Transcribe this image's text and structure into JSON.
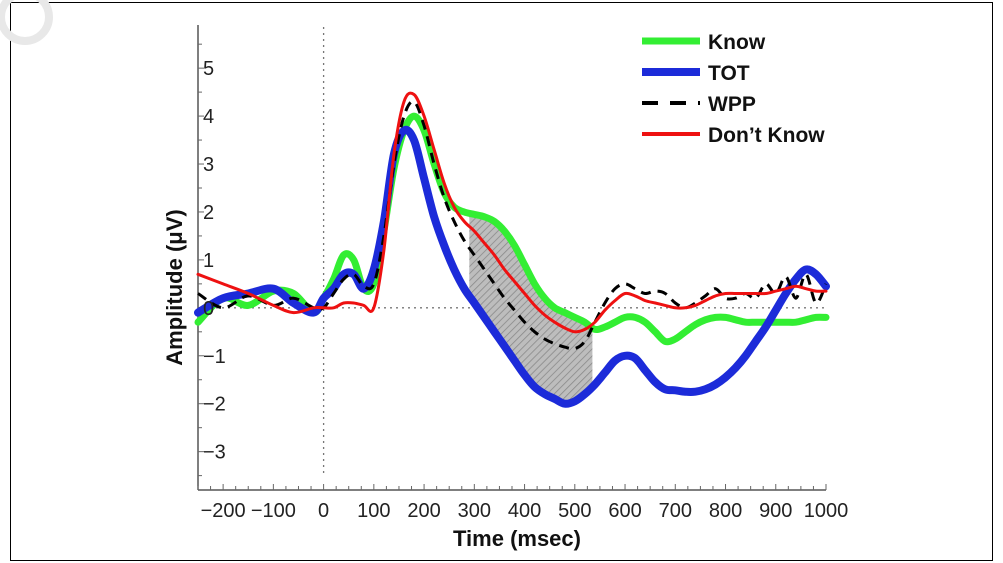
{
  "chart_data": {
    "type": "line",
    "xlabel": "Time (msec)",
    "ylabel": "Amplitude (μV)",
    "xlim": [
      -250,
      1000
    ],
    "ylim": [
      -3.8,
      5.9
    ],
    "xticks": [
      -200,
      -100,
      0,
      100,
      200,
      300,
      400,
      500,
      600,
      700,
      800,
      900,
      1000
    ],
    "xtick_labels": [
      "−200",
      "−100",
      "0",
      "100",
      "200",
      "300",
      "400",
      "500",
      "600",
      "700",
      "800",
      "900",
      "1000"
    ],
    "yticks": [
      5,
      4,
      3,
      2,
      1,
      0,
      -1,
      -2,
      -3
    ],
    "ytick_labels": [
      "5",
      "4",
      "3",
      "2",
      "1",
      "0",
      "−1",
      "−2",
      "−3"
    ],
    "legend_position": "top-right",
    "reference_lines": {
      "x": 0,
      "y": 0
    },
    "shaded_region": {
      "between": [
        "Know",
        "TOT"
      ],
      "x_range": [
        290,
        535
      ],
      "color": "#a8a8a8"
    },
    "series": [
      {
        "name": "Know",
        "color": "#33ee33",
        "width": 7,
        "dash": "",
        "x": [
          -250,
          -200,
          -150,
          -100,
          -60,
          -20,
          0,
          20,
          40,
          60,
          80,
          100,
          120,
          140,
          160,
          180,
          200,
          220,
          240,
          260,
          280,
          300,
          320,
          340,
          360,
          380,
          400,
          420,
          440,
          460,
          480,
          500,
          520,
          540,
          560,
          580,
          600,
          620,
          640,
          660,
          680,
          700,
          720,
          740,
          760,
          780,
          800,
          820,
          840,
          860,
          880,
          900,
          920,
          940,
          960,
          980,
          1000
        ],
        "y": [
          -0.3,
          0.2,
          0.05,
          0.35,
          0.3,
          -0.1,
          0.2,
          0.6,
          1.1,
          1.0,
          0.4,
          0.5,
          1.6,
          2.9,
          3.7,
          4.0,
          3.7,
          3.0,
          2.4,
          2.1,
          2.0,
          1.95,
          1.9,
          1.8,
          1.6,
          1.3,
          0.9,
          0.5,
          0.2,
          0.0,
          -0.1,
          -0.2,
          -0.3,
          -0.45,
          -0.4,
          -0.3,
          -0.2,
          -0.2,
          -0.3,
          -0.5,
          -0.7,
          -0.65,
          -0.5,
          -0.35,
          -0.25,
          -0.2,
          -0.2,
          -0.25,
          -0.3,
          -0.3,
          -0.3,
          -0.3,
          -0.3,
          -0.3,
          -0.25,
          -0.2,
          -0.2
        ]
      },
      {
        "name": "TOT",
        "color": "#1c2bd9",
        "width": 8,
        "dash": "",
        "x": [
          -250,
          -200,
          -150,
          -100,
          -60,
          -20,
          0,
          20,
          40,
          60,
          80,
          100,
          120,
          140,
          160,
          180,
          200,
          220,
          240,
          260,
          280,
          300,
          320,
          340,
          360,
          380,
          400,
          420,
          440,
          460,
          480,
          500,
          520,
          540,
          560,
          580,
          600,
          620,
          640,
          660,
          680,
          700,
          720,
          740,
          760,
          780,
          800,
          820,
          840,
          860,
          880,
          900,
          920,
          940,
          960,
          980,
          1000
        ],
        "y": [
          -0.1,
          0.2,
          0.3,
          0.4,
          0.1,
          -0.1,
          0.2,
          0.4,
          0.7,
          0.7,
          0.4,
          0.8,
          1.8,
          3.2,
          3.7,
          3.5,
          2.7,
          1.9,
          1.3,
          0.8,
          0.4,
          0.1,
          -0.2,
          -0.5,
          -0.8,
          -1.1,
          -1.4,
          -1.65,
          -1.8,
          -1.9,
          -2.0,
          -1.95,
          -1.8,
          -1.6,
          -1.35,
          -1.1,
          -1.0,
          -1.05,
          -1.3,
          -1.55,
          -1.7,
          -1.72,
          -1.75,
          -1.75,
          -1.7,
          -1.6,
          -1.45,
          -1.25,
          -1.0,
          -0.7,
          -0.4,
          -0.05,
          0.3,
          0.6,
          0.8,
          0.7,
          0.45
        ]
      },
      {
        "name": "WPP",
        "color": "#000000",
        "width": 3,
        "dash": "10,7",
        "x": [
          -250,
          -200,
          -150,
          -100,
          -60,
          -20,
          0,
          20,
          40,
          60,
          80,
          100,
          120,
          140,
          160,
          180,
          200,
          220,
          240,
          260,
          280,
          300,
          320,
          340,
          360,
          380,
          400,
          420,
          440,
          460,
          480,
          500,
          520,
          540,
          560,
          580,
          600,
          620,
          640,
          660,
          680,
          700,
          720,
          740,
          760,
          780,
          800,
          820,
          840,
          860,
          880,
          900,
          920,
          940,
          960,
          980,
          1000
        ],
        "y": [
          0.3,
          0.0,
          0.25,
          0.05,
          0.2,
          0.0,
          0.0,
          0.3,
          0.6,
          0.7,
          0.45,
          0.5,
          1.5,
          3.0,
          4.0,
          4.3,
          3.8,
          3.0,
          2.3,
          1.8,
          1.4,
          1.1,
          0.8,
          0.5,
          0.2,
          -0.05,
          -0.3,
          -0.5,
          -0.65,
          -0.75,
          -0.82,
          -0.85,
          -0.7,
          -0.3,
          0.1,
          0.4,
          0.5,
          0.4,
          0.3,
          0.35,
          0.3,
          0.1,
          0.0,
          0.1,
          0.25,
          0.4,
          0.2,
          0.2,
          0.3,
          0.2,
          0.5,
          0.3,
          0.65,
          0.2,
          0.7,
          0.1,
          0.5
        ]
      },
      {
        "name": "Don’t Know",
        "color": "#ee1111",
        "width": 3,
        "dash": "",
        "x": [
          -250,
          -200,
          -150,
          -100,
          -60,
          -20,
          0,
          20,
          40,
          60,
          80,
          100,
          120,
          140,
          160,
          180,
          200,
          220,
          240,
          260,
          280,
          300,
          320,
          340,
          360,
          380,
          400,
          420,
          440,
          460,
          480,
          500,
          520,
          540,
          560,
          580,
          600,
          620,
          640,
          660,
          680,
          700,
          720,
          740,
          760,
          780,
          800,
          820,
          840,
          860,
          880,
          900,
          920,
          940,
          960,
          980,
          1000
        ],
        "y": [
          0.7,
          0.5,
          0.3,
          0.05,
          -0.1,
          0.0,
          0.0,
          0.0,
          0.1,
          0.1,
          0.05,
          0.0,
          1.2,
          3.2,
          4.3,
          4.45,
          4.0,
          3.3,
          2.6,
          2.1,
          1.8,
          1.6,
          1.35,
          1.1,
          0.8,
          0.55,
          0.3,
          0.05,
          -0.15,
          -0.3,
          -0.42,
          -0.5,
          -0.45,
          -0.3,
          -0.05,
          0.15,
          0.3,
          0.25,
          0.15,
          0.1,
          0.05,
          0.0,
          0.0,
          0.05,
          0.15,
          0.25,
          0.3,
          0.3,
          0.3,
          0.3,
          0.3,
          0.35,
          0.4,
          0.45,
          0.4,
          0.35,
          0.35
        ]
      }
    ]
  }
}
